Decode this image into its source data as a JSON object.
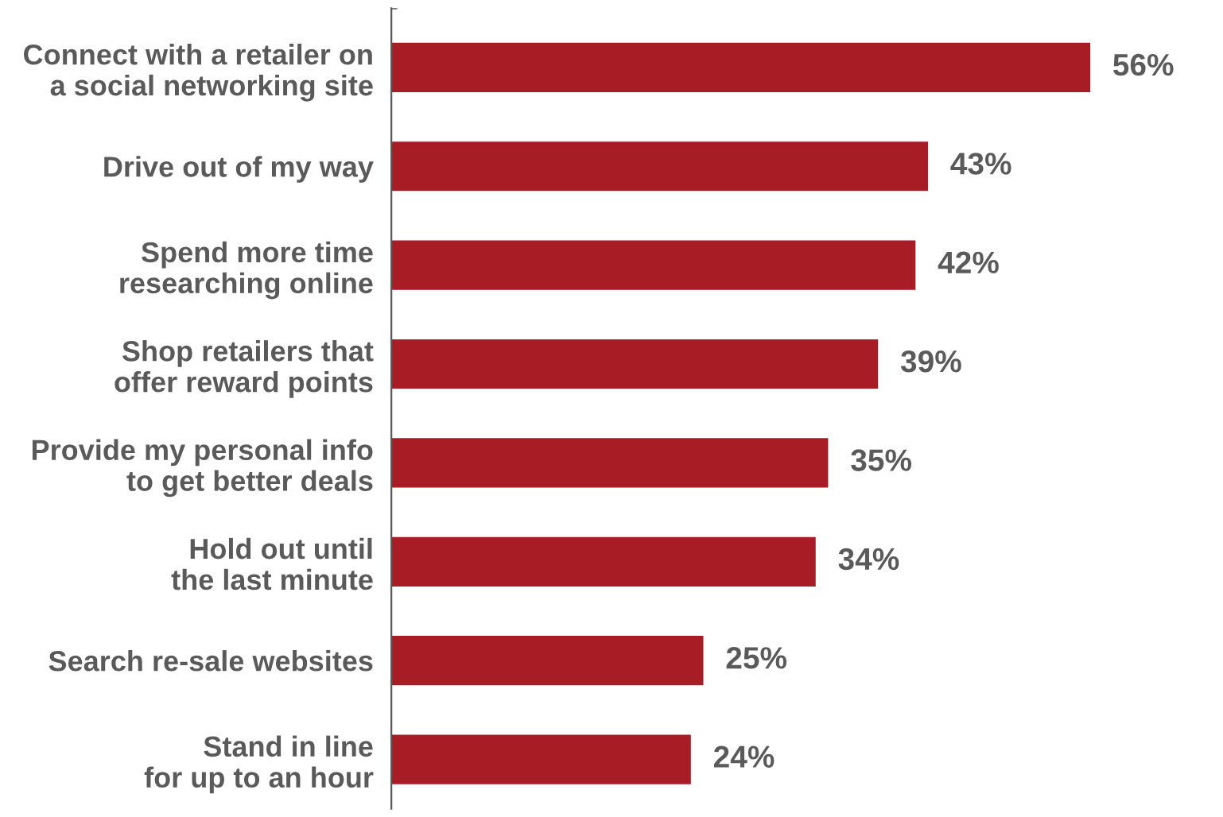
{
  "chart_data": {
    "type": "bar",
    "orientation": "horizontal",
    "categories": [
      "Connect with a retailer on\na social networking site",
      "Drive out of my way",
      "Spend more time\nresearching online",
      "Shop retailers that\noffer reward points",
      "Provide my personal info\nto get better deals",
      "Hold out until\nthe last minute",
      "Search re-sale websites",
      "Stand in line\nfor up to an hour"
    ],
    "values": [
      56,
      43,
      42,
      39,
      35,
      34,
      25,
      24
    ],
    "value_labels": [
      "56%",
      "43%",
      "42%",
      "39%",
      "35%",
      "34%",
      "25%",
      "24%"
    ],
    "color": "#a81c26",
    "tick_labels": "y",
    "grid": false
  }
}
